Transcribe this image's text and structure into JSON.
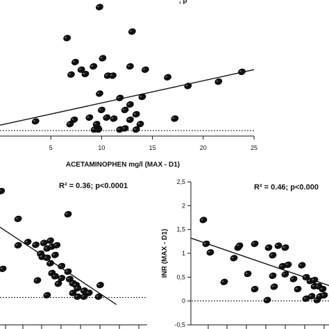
{
  "chart_data": [
    {
      "type": "scatter",
      "title_fragment": ", p",
      "xlabel": "ACETAMINOPHEN mg/l (MAX - D1)",
      "ylabel": "",
      "xlim": [
        0,
        25
      ],
      "ylim": [
        -0.1,
        2.4
      ],
      "xticks": [
        "5",
        "10",
        "15",
        "20",
        "25"
      ],
      "x_tick_values": [
        5,
        10,
        15,
        20,
        25
      ],
      "marker_color": "#111111",
      "points": [
        {
          "x": 9.8,
          "y": 2.27
        },
        {
          "x": 13.0,
          "y": 1.82
        },
        {
          "x": 6.6,
          "y": 1.7
        },
        {
          "x": 7.0,
          "y": 1.03
        },
        {
          "x": 8.0,
          "y": 1.12
        },
        {
          "x": 8.4,
          "y": 1.04
        },
        {
          "x": 7.4,
          "y": 1.26
        },
        {
          "x": 9.2,
          "y": 1.18
        },
        {
          "x": 10.1,
          "y": 1.33
        },
        {
          "x": 10.6,
          "y": 1.01
        },
        {
          "x": 11.1,
          "y": 1.01
        },
        {
          "x": 12.8,
          "y": 1.18
        },
        {
          "x": 14.3,
          "y": 1.12
        },
        {
          "x": 16.5,
          "y": 0.98
        },
        {
          "x": 18.5,
          "y": 0.82
        },
        {
          "x": 21.5,
          "y": 0.9
        },
        {
          "x": 23.8,
          "y": 1.08
        },
        {
          "x": 9.8,
          "y": 0.68
        },
        {
          "x": 11.8,
          "y": 0.6
        },
        {
          "x": 14.0,
          "y": 0.62
        },
        {
          "x": 12.8,
          "y": 0.48
        },
        {
          "x": 10.0,
          "y": 0.38
        },
        {
          "x": 12.3,
          "y": 0.38
        },
        {
          "x": 13.4,
          "y": 0.3
        },
        {
          "x": 8.8,
          "y": 0.24
        },
        {
          "x": 11.2,
          "y": 0.22
        },
        {
          "x": 7.3,
          "y": 0.2
        },
        {
          "x": 12.8,
          "y": 0.2
        },
        {
          "x": 17.2,
          "y": 0.22
        },
        {
          "x": 6.9,
          "y": 0.12
        },
        {
          "x": 3.5,
          "y": 0.17
        },
        {
          "x": 9.6,
          "y": 0.05
        },
        {
          "x": 9.7,
          "y": 0.02
        },
        {
          "x": 11.8,
          "y": 0.02
        },
        {
          "x": 13.4,
          "y": 0.02
        },
        {
          "x": 12.3,
          "y": 0.04
        },
        {
          "x": 9.5,
          "y": 0.12
        },
        {
          "x": 13.8,
          "y": 0.12
        },
        {
          "x": 10.5,
          "y": 0.24
        },
        {
          "x": 9.3,
          "y": 0.02
        }
      ],
      "regression": {
        "x": [
          0,
          25
        ],
        "y": [
          0.1,
          1.12
        ]
      },
      "reference_line_y": 0
    },
    {
      "type": "scatter",
      "annotation": "R² = 0.36; p<0.0001",
      "xlabel": "",
      "ylabel": "",
      "xlim": [
        0,
        10
      ],
      "ylim": [
        -0.5,
        2.5
      ],
      "marker_color": "#111111",
      "points": [
        {
          "x": 0.85,
          "y": 2.3
        },
        {
          "x": 1.9,
          "y": 1.7
        },
        {
          "x": 5.0,
          "y": 1.8
        },
        {
          "x": 1.9,
          "y": 1.13
        },
        {
          "x": 2.5,
          "y": 1.2
        },
        {
          "x": 3.0,
          "y": 1.14
        },
        {
          "x": 3.3,
          "y": 0.95
        },
        {
          "x": 3.5,
          "y": 1.18
        },
        {
          "x": 3.7,
          "y": 1.06
        },
        {
          "x": 3.9,
          "y": 1.23
        },
        {
          "x": 4.0,
          "y": 1.1
        },
        {
          "x": 4.3,
          "y": 1.13
        },
        {
          "x": 3.4,
          "y": 0.88
        },
        {
          "x": 3.7,
          "y": 0.86
        },
        {
          "x": 4.2,
          "y": 0.92
        },
        {
          "x": 4.6,
          "y": 0.68
        },
        {
          "x": 3.9,
          "y": 0.74
        },
        {
          "x": 0.95,
          "y": 0.62
        },
        {
          "x": 4.0,
          "y": 0.53
        },
        {
          "x": 4.2,
          "y": 0.46
        },
        {
          "x": 4.6,
          "y": 0.42
        },
        {
          "x": 5.0,
          "y": 0.56
        },
        {
          "x": 5.1,
          "y": 0.4
        },
        {
          "x": 4.4,
          "y": 0.3
        },
        {
          "x": 5.3,
          "y": 0.31
        },
        {
          "x": 5.5,
          "y": 0.27
        },
        {
          "x": 5.6,
          "y": 0.2
        },
        {
          "x": 6.0,
          "y": 0.15
        },
        {
          "x": 6.2,
          "y": 0.1
        },
        {
          "x": 7.0,
          "y": 0.27
        },
        {
          "x": 3.1,
          "y": 0.37
        },
        {
          "x": 3.7,
          "y": 0.05
        },
        {
          "x": 5.3,
          "y": 0.1
        },
        {
          "x": 6.3,
          "y": 0.1
        },
        {
          "x": 5.6,
          "y": 0.02
        },
        {
          "x": 6.0,
          "y": 0.02
        },
        {
          "x": 6.9,
          "y": 0.02
        }
      ],
      "regression": {
        "x": [
          0,
          8
        ],
        "y": [
          1.7,
          -0.15
        ]
      },
      "reference_line_y": 0
    },
    {
      "type": "scatter",
      "annotation": "R² = 0.46; p<0.000",
      "xlabel": "",
      "ylabel": "INR (MAX - D1)",
      "xlim": [
        0,
        10
      ],
      "ylim": [
        -0.5,
        2.5
      ],
      "yticks": [
        "2,5",
        "2",
        "1,5",
        "1",
        "0,5",
        "0",
        "-0,5"
      ],
      "y_tick_values": [
        2.5,
        2.0,
        1.5,
        1.0,
        0.5,
        0.0,
        -0.5
      ],
      "marker_color": "#111111",
      "points": [
        {
          "x": 0.9,
          "y": 1.7
        },
        {
          "x": 1.1,
          "y": 1.2
        },
        {
          "x": 1.4,
          "y": 1.02
        },
        {
          "x": 3.4,
          "y": 1.12
        },
        {
          "x": 3.5,
          "y": 1.16
        },
        {
          "x": 4.6,
          "y": 1.2
        },
        {
          "x": 5.6,
          "y": 1.12
        },
        {
          "x": 6.3,
          "y": 1.16
        },
        {
          "x": 6.8,
          "y": 1.12
        },
        {
          "x": 3.1,
          "y": 0.9
        },
        {
          "x": 5.9,
          "y": 0.96
        },
        {
          "x": 7.0,
          "y": 0.76
        },
        {
          "x": 5.9,
          "y": 0.53
        },
        {
          "x": 6.6,
          "y": 0.73
        },
        {
          "x": 6.8,
          "y": 0.56
        },
        {
          "x": 7.4,
          "y": 0.46
        },
        {
          "x": 8.0,
          "y": 0.75
        },
        {
          "x": 8.3,
          "y": 0.5
        },
        {
          "x": 8.6,
          "y": 0.42
        },
        {
          "x": 8.9,
          "y": 0.31
        },
        {
          "x": 4.1,
          "y": 0.57
        },
        {
          "x": 2.4,
          "y": 0.4
        },
        {
          "x": 4.6,
          "y": 0.25
        },
        {
          "x": 6.0,
          "y": 0.3
        },
        {
          "x": 7.7,
          "y": 0.25
        },
        {
          "x": 8.9,
          "y": 0.44
        },
        {
          "x": 9.2,
          "y": 0.31
        },
        {
          "x": 9.5,
          "y": 0.25
        },
        {
          "x": 8.3,
          "y": 0.05
        },
        {
          "x": 8.7,
          "y": 0.1
        },
        {
          "x": 9.3,
          "y": 0.1
        },
        {
          "x": 9.6,
          "y": 0.12
        },
        {
          "x": 5.5,
          "y": 0.02
        },
        {
          "x": 9.1,
          "y": 0.02
        }
      ],
      "regression": {
        "x": [
          0,
          10
        ],
        "y": [
          1.32,
          0.32
        ]
      },
      "reference_line_y": 0
    }
  ]
}
